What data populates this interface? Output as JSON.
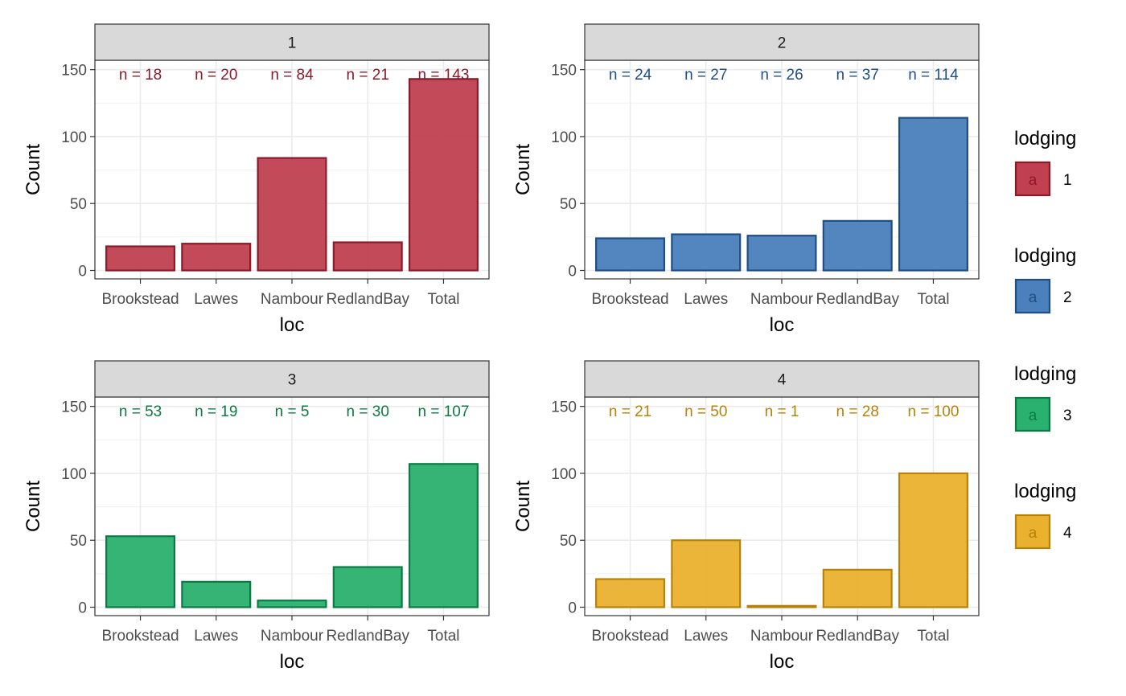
{
  "chart_data": {
    "type": "bar",
    "xlabel": "loc",
    "ylabel": "Count",
    "ylim": [
      0,
      157
    ],
    "yticks": [
      0,
      50,
      100,
      150
    ],
    "categories": [
      "Brookstead",
      "Lawes",
      "Nambour",
      "RedlandBay",
      "Total"
    ],
    "panels": [
      {
        "strip": "1",
        "values": [
          18,
          20,
          84,
          21,
          143
        ],
        "labels": [
          "n = 18",
          "n = 20",
          "n = 84",
          "n = 21",
          "n = 143"
        ]
      },
      {
        "strip": "2",
        "values": [
          24,
          27,
          26,
          37,
          114
        ],
        "labels": [
          "n = 24",
          "n = 27",
          "n = 26",
          "n = 37",
          "n = 114"
        ]
      },
      {
        "strip": "3",
        "values": [
          53,
          19,
          5,
          30,
          107
        ],
        "labels": [
          "n = 53",
          "n = 19",
          "n = 5",
          "n = 30",
          "n = 107"
        ]
      },
      {
        "strip": "4",
        "values": [
          21,
          50,
          1,
          28,
          100
        ],
        "labels": [
          "n = 21",
          "n = 50",
          "n = 1",
          "n = 28",
          "n = 100"
        ]
      }
    ],
    "legend": {
      "placement": "right",
      "entries": [
        {
          "title": "lodging",
          "key_glyph": "a",
          "label": "1"
        },
        {
          "title": "lodging",
          "key_glyph": "a",
          "label": "2"
        },
        {
          "title": "lodging",
          "key_glyph": "a",
          "label": "3"
        },
        {
          "title": "lodging",
          "key_glyph": "a",
          "label": "4"
        }
      ]
    },
    "grid": true,
    "colors": {
      "fills": [
        "#c0404f",
        "#4a80bb",
        "#2ab06f",
        "#eab12f"
      ],
      "strokes": [
        "#8b1a2b",
        "#1f4e85",
        "#0b7a44",
        "#b7820a"
      ],
      "text": [
        "#8b1a2b",
        "#1f4e85",
        "#0b7a44",
        "#b7820a"
      ],
      "strip_background": "#d9d9d9"
    }
  }
}
